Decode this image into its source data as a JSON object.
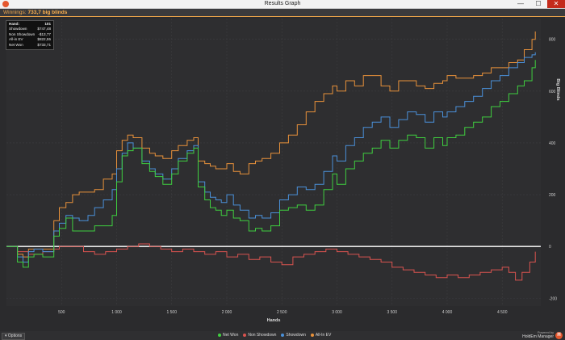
{
  "window": {
    "title": "Results Graph",
    "close_glyph": "✕",
    "min_glyph": "—",
    "max_glyph": "☐",
    "app_icon": "holdem-manager-icon"
  },
  "infobar": {
    "label": "Winnings:",
    "value": "733,7 big blinds"
  },
  "tooltip": {
    "rows": [
      {
        "label": "Hand:",
        "value": "101"
      },
      {
        "label": "Showdown",
        "value": "$747,48"
      },
      {
        "label": "Non Showdown",
        "value": "-$13,77"
      },
      {
        "label": "All-in EV",
        "value": "$822,55"
      },
      {
        "label": "Net Won",
        "value": "$733,71"
      }
    ]
  },
  "options_label": "Options",
  "branding": {
    "powered_by": "Powered by",
    "name": "HoldEm Manager"
  },
  "chart_data": {
    "type": "line",
    "xlabel": "Hands",
    "ylabel": "Big Blinds",
    "xlim": [
      0,
      4850
    ],
    "ylim": [
      -230,
      880
    ],
    "x_ticks": [
      500,
      1000,
      1500,
      2000,
      2500,
      3000,
      3500,
      4000,
      4500
    ],
    "x_tick_labels": [
      "500",
      "1 000",
      "1 500",
      "2 000",
      "2 500",
      "3 000",
      "3 500",
      "4 000",
      "4 500"
    ],
    "y_ticks": [
      800,
      600,
      400,
      200,
      0,
      -200
    ],
    "y_tick_labels": [
      "800",
      "600",
      "400",
      "200",
      "0",
      "-200"
    ],
    "grid": true,
    "legend_position": "bottom",
    "series": [
      {
        "name": "Net Won",
        "color": "#3fcf3f",
        "x": [
          0,
          100,
          150,
          200,
          250,
          330,
          430,
          480,
          540,
          600,
          660,
          740,
          800,
          880,
          960,
          1000,
          1050,
          1100,
          1150,
          1230,
          1300,
          1350,
          1420,
          1500,
          1560,
          1640,
          1700,
          1740,
          1800,
          1850,
          1900,
          1950,
          2000,
          2060,
          2120,
          2200,
          2260,
          2320,
          2400,
          2480,
          2560,
          2640,
          2720,
          2800,
          2880,
          2960,
          3000,
          3080,
          3160,
          3240,
          3320,
          3400,
          3480,
          3560,
          3640,
          3720,
          3800,
          3880,
          3960,
          4000,
          4080,
          4160,
          4240,
          4320,
          4400,
          4480,
          4560,
          4640,
          4700,
          4770,
          4800
        ],
        "y": [
          0,
          -60,
          -80,
          -40,
          -30,
          -40,
          40,
          70,
          110,
          60,
          60,
          60,
          80,
          80,
          120,
          250,
          350,
          370,
          380,
          320,
          290,
          270,
          240,
          280,
          330,
          360,
          380,
          230,
          180,
          150,
          140,
          120,
          140,
          110,
          100,
          60,
          70,
          60,
          80,
          140,
          150,
          160,
          140,
          160,
          220,
          280,
          240,
          300,
          330,
          360,
          380,
          410,
          380,
          410,
          430,
          420,
          380,
          420,
          390,
          420,
          430,
          460,
          480,
          500,
          540,
          560,
          590,
          620,
          640,
          690,
          720
        ]
      },
      {
        "name": "Non Showdown",
        "color": "#d9534f",
        "x": [
          0,
          100,
          200,
          260,
          330,
          430,
          480,
          540,
          600,
          700,
          800,
          900,
          1000,
          1100,
          1200,
          1300,
          1400,
          1500,
          1600,
          1700,
          1800,
          1900,
          2000,
          2100,
          2200,
          2300,
          2400,
          2500,
          2600,
          2700,
          2800,
          2900,
          3000,
          3100,
          3200,
          3300,
          3400,
          3500,
          3600,
          3700,
          3800,
          3900,
          4000,
          4100,
          4200,
          4300,
          4400,
          4500,
          4560,
          4620,
          4680,
          4750,
          4800
        ],
        "y": [
          0,
          -20,
          -30,
          -30,
          -20,
          -10,
          0,
          0,
          0,
          -20,
          -30,
          -20,
          -10,
          0,
          10,
          0,
          -10,
          -20,
          -10,
          -20,
          -30,
          -20,
          -40,
          -30,
          -50,
          -40,
          -60,
          -70,
          -40,
          -30,
          -20,
          -10,
          -20,
          -30,
          -40,
          -50,
          -60,
          -80,
          -90,
          -100,
          -110,
          -120,
          -110,
          -120,
          -110,
          -100,
          -90,
          -80,
          -100,
          -130,
          -100,
          -60,
          -20
        ]
      },
      {
        "name": "Showdown",
        "color": "#4a90d9",
        "x": [
          0,
          100,
          150,
          200,
          250,
          330,
          430,
          480,
          540,
          600,
          660,
          740,
          800,
          880,
          960,
          1000,
          1050,
          1100,
          1150,
          1230,
          1300,
          1350,
          1420,
          1500,
          1560,
          1640,
          1700,
          1740,
          1800,
          1850,
          1900,
          1950,
          2000,
          2060,
          2120,
          2200,
          2260,
          2320,
          2400,
          2480,
          2560,
          2640,
          2720,
          2800,
          2880,
          2960,
          3000,
          3080,
          3160,
          3240,
          3320,
          3400,
          3480,
          3560,
          3640,
          3720,
          3800,
          3880,
          3960,
          4000,
          4080,
          4160,
          4240,
          4320,
          4400,
          4480,
          4560,
          4640,
          4700,
          4770,
          4800
        ],
        "y": [
          0,
          -40,
          -60,
          -20,
          -10,
          -20,
          60,
          90,
          120,
          110,
          100,
          120,
          150,
          180,
          220,
          300,
          360,
          400,
          380,
          330,
          300,
          280,
          260,
          300,
          340,
          370,
          390,
          250,
          210,
          190,
          180,
          170,
          200,
          160,
          140,
          110,
          120,
          110,
          130,
          180,
          200,
          230,
          220,
          240,
          290,
          350,
          330,
          390,
          420,
          460,
          480,
          500,
          460,
          490,
          520,
          510,
          480,
          520,
          500,
          520,
          540,
          560,
          580,
          610,
          640,
          660,
          690,
          710,
          730,
          740,
          750
        ]
      },
      {
        "name": "All-In EV",
        "color": "#e8913a",
        "x": [
          0,
          100,
          150,
          200,
          250,
          330,
          430,
          480,
          540,
          600,
          660,
          740,
          800,
          880,
          960,
          1000,
          1050,
          1100,
          1150,
          1230,
          1300,
          1350,
          1420,
          1500,
          1560,
          1640,
          1700,
          1740,
          1800,
          1850,
          1900,
          1950,
          2000,
          2060,
          2120,
          2200,
          2260,
          2320,
          2400,
          2480,
          2560,
          2640,
          2720,
          2800,
          2880,
          2960,
          3000,
          3080,
          3160,
          3240,
          3320,
          3400,
          3480,
          3560,
          3640,
          3720,
          3800,
          3880,
          3960,
          4000,
          4080,
          4160,
          4240,
          4320,
          4400,
          4480,
          4560,
          4640,
          4700,
          4770,
          4800
        ],
        "y": [
          0,
          -30,
          -40,
          -10,
          -10,
          -10,
          100,
          150,
          170,
          200,
          210,
          210,
          220,
          260,
          280,
          370,
          410,
          430,
          420,
          380,
          360,
          350,
          340,
          370,
          390,
          410,
          420,
          330,
          320,
          310,
          300,
          300,
          320,
          290,
          280,
          320,
          330,
          340,
          360,
          400,
          430,
          470,
          520,
          560,
          590,
          620,
          600,
          640,
          620,
          660,
          660,
          620,
          600,
          640,
          640,
          620,
          610,
          630,
          640,
          660,
          650,
          650,
          660,
          670,
          690,
          690,
          710,
          720,
          760,
          800,
          830
        ]
      }
    ]
  }
}
